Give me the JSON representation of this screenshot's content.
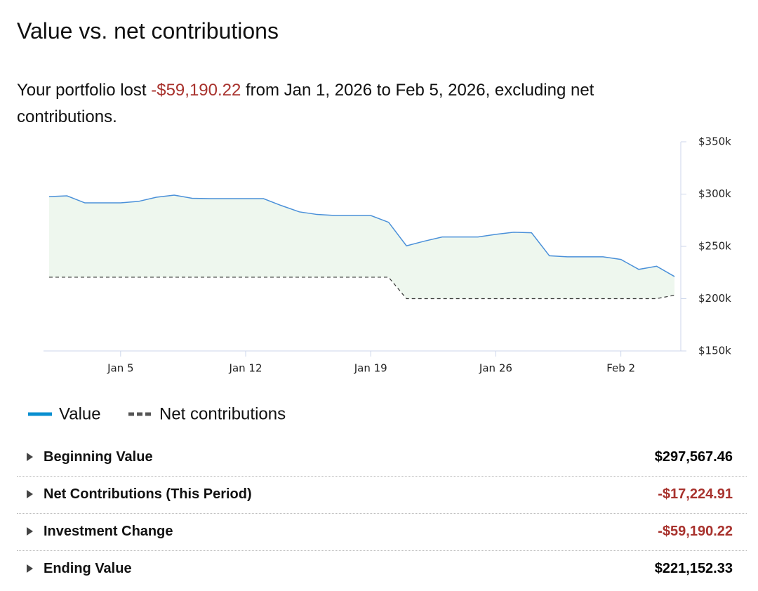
{
  "header": {
    "title": "Value vs. net contributions"
  },
  "summary": {
    "prefix": "Your portfolio lost",
    "amount": "-$59,190.22",
    "suffix": "from Jan 1, 2026 to Feb 5, 2026, excluding net contributions."
  },
  "chart_data": {
    "type": "line",
    "x": [
      "2026-01-01",
      "2026-01-02",
      "2026-01-03",
      "2026-01-04",
      "2026-01-05",
      "2026-01-06",
      "2026-01-07",
      "2026-01-08",
      "2026-01-09",
      "2026-01-10",
      "2026-01-11",
      "2026-01-12",
      "2026-01-13",
      "2026-01-14",
      "2026-01-15",
      "2026-01-16",
      "2026-01-17",
      "2026-01-18",
      "2026-01-19",
      "2026-01-20",
      "2026-01-21",
      "2026-01-22",
      "2026-01-23",
      "2026-01-24",
      "2026-01-25",
      "2026-01-26",
      "2026-01-27",
      "2026-01-28",
      "2026-01-29",
      "2026-01-30",
      "2026-01-31",
      "2026-02-01",
      "2026-02-02",
      "2026-02-03",
      "2026-02-04",
      "2026-02-05"
    ],
    "series": [
      {
        "name": "Value",
        "color": "#4a90d9",
        "fill": "#eef7ee",
        "values": [
          297600,
          298300,
          291600,
          291600,
          291600,
          293000,
          297000,
          299000,
          296000,
          295600,
          295600,
          295600,
          295600,
          289000,
          283000,
          280500,
          279500,
          279500,
          279500,
          273000,
          250500,
          255000,
          259000,
          259000,
          259000,
          261500,
          263500,
          263000,
          241000,
          240000,
          240000,
          240000,
          237500,
          228000,
          231000,
          221200
        ]
      },
      {
        "name": "Net contributions",
        "color": "#333333",
        "dashed": true,
        "values": [
          220500,
          220500,
          220500,
          220500,
          220500,
          220500,
          220500,
          220500,
          220500,
          220500,
          220500,
          220500,
          220500,
          220500,
          220500,
          220500,
          220500,
          220500,
          220500,
          220500,
          200000,
          200000,
          200000,
          200000,
          200000,
          200000,
          200000,
          200000,
          200000,
          200000,
          200000,
          200000,
          200000,
          200000,
          200000,
          203300
        ]
      }
    ],
    "xlim": [
      "2026-01-01",
      "2026-02-05"
    ],
    "xticks": [
      {
        "value": "2026-01-05",
        "label": "Jan 5"
      },
      {
        "value": "2026-01-12",
        "label": "Jan 12"
      },
      {
        "value": "2026-01-19",
        "label": "Jan 19"
      },
      {
        "value": "2026-01-26",
        "label": "Jan 26"
      },
      {
        "value": "2026-02-02",
        "label": "Feb 2"
      }
    ],
    "ylim": [
      150000,
      350000
    ],
    "yticks": [
      {
        "value": 150000,
        "label": "$150k"
      },
      {
        "value": 200000,
        "label": "$200k"
      },
      {
        "value": 250000,
        "label": "$250k"
      },
      {
        "value": 300000,
        "label": "$300k"
      },
      {
        "value": 350000,
        "label": "$350k"
      }
    ]
  },
  "table": {
    "rows": [
      {
        "label": "Beginning Value",
        "value": "$297,567.46",
        "color": "#000000"
      },
      {
        "label": "Net Contributions (This Period)",
        "value": "-$17,224.91",
        "color": "#a8322d"
      },
      {
        "label": "Investment Change",
        "value": "-$59,190.22",
        "color": "#a8322d"
      },
      {
        "label": "Ending Value",
        "value": "$221,152.33",
        "color": "#000000"
      }
    ]
  }
}
